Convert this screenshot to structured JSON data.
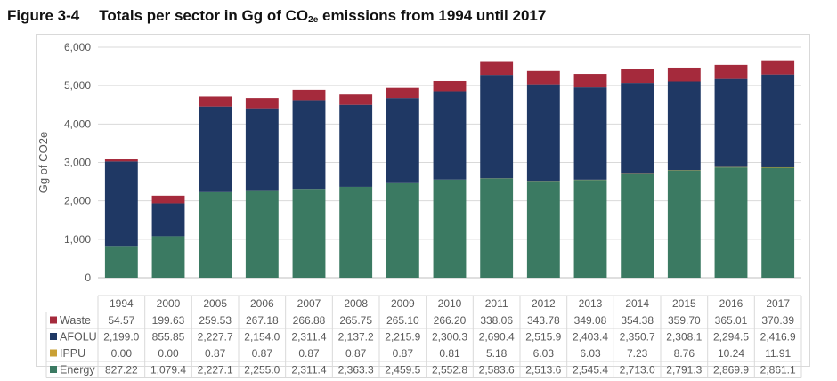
{
  "title": {
    "figure": "Figure 3-4",
    "text_before": "Totals per sector in Gg of CO",
    "subscript": "2e",
    "text_after": " emissions from 1994 until 2017"
  },
  "chart_data": {
    "type": "bar",
    "stacked": true,
    "ylabel": "Gg of CO2e",
    "ylim": [
      0,
      6000
    ],
    "yticks": [
      "0",
      "1,000",
      "2,000",
      "3,000",
      "4,000",
      "5,000",
      "6,000"
    ],
    "grid": true,
    "legend": "data-table-left",
    "categories": [
      "1994",
      "2000",
      "2005",
      "2006",
      "2007",
      "2008",
      "2009",
      "2010",
      "2011",
      "2012",
      "2013",
      "2014",
      "2015",
      "2016",
      "2017"
    ],
    "series": [
      {
        "name": "Waste",
        "color": "#a52a3c",
        "values": [
          54.57,
          199.63,
          259.53,
          267.18,
          266.88,
          265.75,
          265.1,
          266.2,
          338.06,
          343.78,
          349.08,
          354.38,
          359.7,
          365.01,
          370.39
        ],
        "labels": [
          "54.57",
          "199.63",
          "259.53",
          "267.18",
          "266.88",
          "265.75",
          "265.10",
          "266.20",
          "338.06",
          "343.78",
          "349.08",
          "354.38",
          "359.70",
          "365.01",
          "370.39"
        ]
      },
      {
        "name": "AFOLU",
        "color": "#1f3864",
        "values": [
          2199.0,
          855.85,
          2227.7,
          2154.0,
          2311.4,
          2137.2,
          2215.9,
          2300.3,
          2690.4,
          2515.9,
          2403.4,
          2350.7,
          2308.1,
          2294.5,
          2416.9
        ],
        "labels": [
          "2,199.0",
          "855.85",
          "2,227.7",
          "2,154.0",
          "2,311.4",
          "2,137.2",
          "2,215.9",
          "2,300.3",
          "2,690.4",
          "2,515.9",
          "2,403.4",
          "2,350.7",
          "2,308.1",
          "2,294.5",
          "2,416.9"
        ]
      },
      {
        "name": "IPPU",
        "color": "#c9a034",
        "values": [
          0.0,
          0.0,
          0.87,
          0.87,
          0.87,
          0.87,
          0.87,
          0.81,
          5.18,
          6.03,
          6.03,
          7.23,
          8.76,
          10.24,
          11.91
        ],
        "labels": [
          "0.00",
          "0.00",
          "0.87",
          "0.87",
          "0.87",
          "0.87",
          "0.87",
          "0.81",
          "5.18",
          "6.03",
          "6.03",
          "7.23",
          "8.76",
          "10.24",
          "11.91"
        ]
      },
      {
        "name": "Energy",
        "color": "#3b7a62",
        "values": [
          827.22,
          1079.4,
          2227.1,
          2255.0,
          2311.4,
          2363.3,
          2459.5,
          2552.8,
          2583.6,
          2513.6,
          2545.4,
          2713.0,
          2791.3,
          2869.9,
          2861.1
        ],
        "labels": [
          "827.22",
          "1,079.4",
          "2,227.1",
          "2,255.0",
          "2,311.4",
          "2,363.3",
          "2,459.5",
          "2,552.8",
          "2,583.6",
          "2,513.6",
          "2,545.4",
          "2,713.0",
          "2,791.3",
          "2,869.9",
          "2,861.1"
        ]
      }
    ]
  }
}
